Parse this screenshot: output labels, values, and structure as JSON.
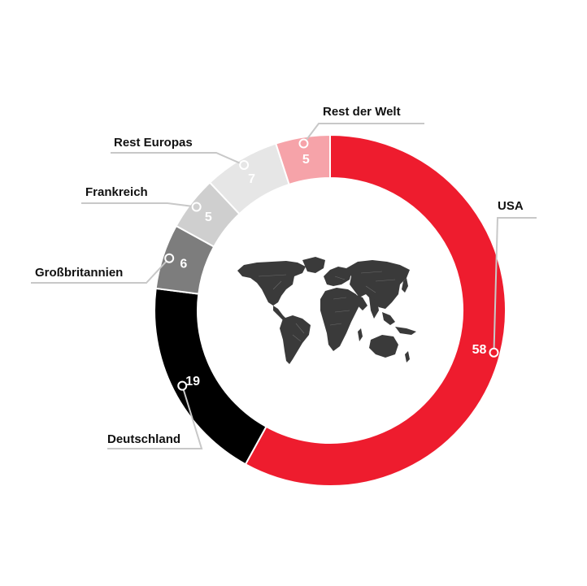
{
  "chart_data": {
    "type": "pie",
    "variant": "donut",
    "categories": [
      "USA",
      "Deutschland",
      "Großbritannien",
      "Frankreich",
      "Rest Europas",
      "Rest der Welt"
    ],
    "values": [
      58,
      19,
      6,
      5,
      7,
      5
    ],
    "colors": [
      "#ee1c2e",
      "#000000",
      "#7d7d7d",
      "#cfcfcf",
      "#e6e6e6",
      "#f6a3a9"
    ],
    "legend": "callout labels",
    "center_image": "world-map-icon"
  }
}
